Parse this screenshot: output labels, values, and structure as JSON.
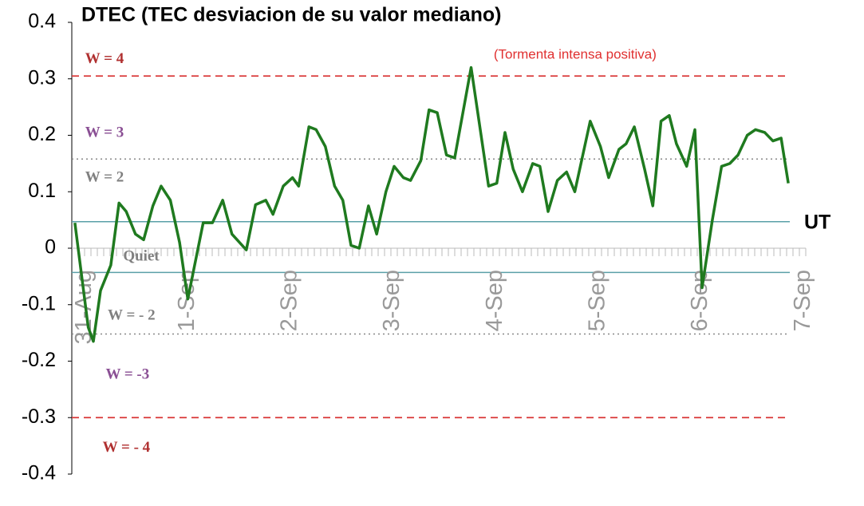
{
  "chart_data": {
    "type": "line",
    "title": "DTEC (TEC desviacion de su valor mediano)",
    "x": [
      -0.02,
      0.11,
      0.16,
      0.23,
      0.33,
      0.41,
      0.48,
      0.57,
      0.65,
      0.74,
      0.82,
      0.91,
      1.0,
      1.08,
      1.23,
      1.32,
      1.42,
      1.51,
      1.65,
      1.74,
      1.84,
      1.91,
      2.01,
      2.1,
      2.16,
      2.26,
      2.33,
      2.42,
      2.51,
      2.59,
      2.67,
      2.75,
      2.84,
      2.92,
      3.01,
      3.09,
      3.18,
      3.25,
      3.35,
      3.43,
      3.51,
      3.6,
      3.68,
      3.84,
      4.01,
      4.09,
      4.17,
      4.25,
      4.34,
      4.44,
      4.51,
      4.59,
      4.68,
      4.77,
      4.85,
      5.0,
      5.1,
      5.18,
      5.28,
      5.35,
      5.43,
      5.53,
      5.61,
      5.69,
      5.77,
      5.84,
      5.94,
      6.02,
      6.09,
      6.19,
      6.28,
      6.36,
      6.44,
      6.53,
      6.61,
      6.7,
      6.78,
      6.86,
      6.93
    ],
    "series": [
      {
        "color": "#1f7a1f",
        "values": [
          0.045,
          -0.14,
          -0.165,
          -0.075,
          -0.03,
          0.08,
          0.065,
          0.025,
          0.015,
          0.075,
          0.11,
          0.085,
          0.01,
          -0.09,
          0.045,
          0.045,
          0.085,
          0.025,
          -0.003,
          0.077,
          0.085,
          0.06,
          0.11,
          0.125,
          0.11,
          0.215,
          0.21,
          0.18,
          0.11,
          0.085,
          0.005,
          0.0,
          0.075,
          0.025,
          0.1,
          0.145,
          0.125,
          0.12,
          0.155,
          0.245,
          0.24,
          0.165,
          0.16,
          0.32,
          0.11,
          0.115,
          0.205,
          0.14,
          0.1,
          0.15,
          0.145,
          0.065,
          0.12,
          0.135,
          0.1,
          0.225,
          0.18,
          0.125,
          0.175,
          0.185,
          0.215,
          0.14,
          0.075,
          0.225,
          0.235,
          0.185,
          0.145,
          0.21,
          -0.07,
          0.05,
          0.145,
          0.15,
          0.165,
          0.2,
          0.21,
          0.205,
          0.19,
          0.195,
          0.115
        ]
      }
    ],
    "xlim": [
      -0.05,
      7.1
    ],
    "xticks": [
      {
        "value": 0,
        "label": "31-Aug"
      },
      {
        "value": 1,
        "label": "1-Sep"
      },
      {
        "value": 2,
        "label": "2-Sep"
      },
      {
        "value": 3,
        "label": "3-Sep"
      },
      {
        "value": 4,
        "label": "4-Sep"
      },
      {
        "value": 5,
        "label": "5-Sep"
      },
      {
        "value": 6,
        "label": "6-Sep"
      },
      {
        "value": 7,
        "label": "7-Sep"
      }
    ],
    "ylim": [
      -0.4,
      0.4
    ],
    "yticks": [
      -0.4,
      -0.3,
      -0.2,
      -0.1,
      0,
      0.1,
      0.2,
      0.3,
      0.4
    ],
    "reference_lines": [
      {
        "value": 0.305,
        "color": "#d93636",
        "style": "dashed"
      },
      {
        "value": -0.3,
        "color": "#d93636",
        "style": "dashed"
      },
      {
        "value": 0.158,
        "color": "#888888",
        "style": "dotted"
      },
      {
        "value": -0.152,
        "color": "#888888",
        "style": "dotted"
      },
      {
        "value": 0.047,
        "color": "#5aa0a8",
        "style": "solid"
      },
      {
        "value": -0.043,
        "color": "#5aa0a8",
        "style": "solid"
      }
    ],
    "annotations": [
      {
        "text": "W = 4",
        "x": 0.08,
        "y": 0.334,
        "color": "#b03030"
      },
      {
        "text": "W = 3",
        "x": 0.08,
        "y": 0.203,
        "color": "#8a4f94"
      },
      {
        "text": "W = 2",
        "x": 0.08,
        "y": 0.124,
        "color": "#808080"
      },
      {
        "text": "Quiet",
        "x": 0.45,
        "y": -0.016,
        "color": "#808080"
      },
      {
        "text": "W = - 2",
        "x": 0.3,
        "y": -0.12,
        "color": "#808080"
      },
      {
        "text": "W = -3",
        "x": 0.28,
        "y": -0.225,
        "color": "#8a4f94"
      },
      {
        "text": "W = - 4",
        "x": 0.25,
        "y": -0.354,
        "color": "#b03030"
      },
      {
        "text": "(Tormenta intensa positiva)",
        "x": 4.06,
        "y": 0.342,
        "color": "#e03030"
      }
    ],
    "axis_label_x": "UT"
  }
}
